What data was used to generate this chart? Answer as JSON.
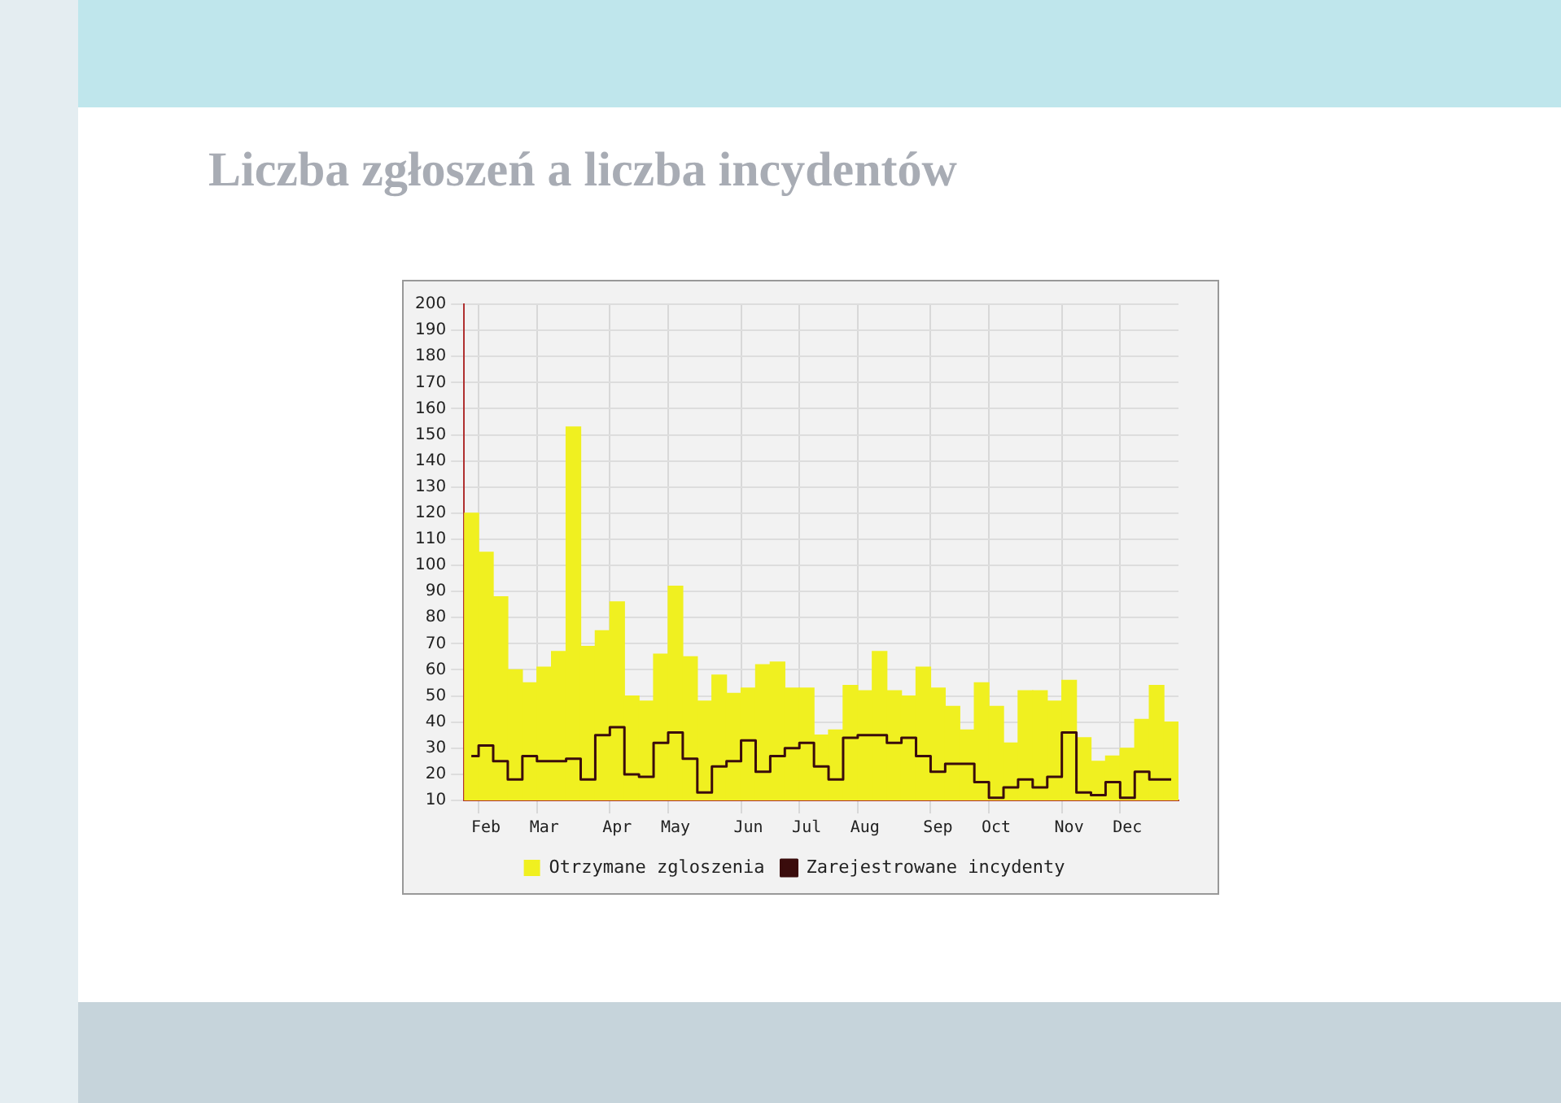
{
  "chart_data": {
    "type": "bar",
    "title": "Liczba zgłoszeń a liczba incydentów",
    "categories": [
      null,
      "Feb",
      null,
      null,
      null,
      "Mar",
      null,
      null,
      null,
      null,
      "Apr",
      null,
      null,
      null,
      "May",
      null,
      null,
      null,
      null,
      "Jun",
      null,
      null,
      null,
      "Jul",
      null,
      null,
      null,
      "Aug",
      null,
      null,
      null,
      null,
      "Sep",
      null,
      null,
      null,
      "Oct",
      null,
      null,
      null,
      null,
      "Nov",
      null,
      null,
      null,
      "Dec",
      null,
      null,
      null
    ],
    "series": [
      {
        "name": "Otrzymane zgloszenia",
        "color": "#f0f020",
        "values": [
          120,
          105,
          88,
          60,
          55,
          61,
          67,
          153,
          69,
          75,
          86,
          50,
          48,
          66,
          92,
          65,
          48,
          58,
          51,
          53,
          62,
          63,
          53,
          53,
          35,
          37,
          54,
          52,
          67,
          52,
          50,
          61,
          53,
          46,
          37,
          55,
          46,
          32,
          52,
          52,
          48,
          56,
          34,
          25,
          27,
          30,
          41,
          54,
          40
        ]
      },
      {
        "name": "Zarejestrowane incydenty",
        "type": "step",
        "color": "#3a0c0c",
        "values": [
          27,
          31,
          25,
          18,
          27,
          25,
          25,
          26,
          18,
          35,
          38,
          20,
          19,
          32,
          36,
          26,
          13,
          23,
          25,
          33,
          21,
          27,
          30,
          32,
          23,
          18,
          34,
          35,
          35,
          32,
          34,
          27,
          21,
          24,
          24,
          17,
          11,
          15,
          18,
          15,
          19,
          36,
          13,
          12,
          17,
          11,
          21,
          18,
          18
        ]
      }
    ],
    "ylim": [
      10,
      200
    ],
    "yticks": [
      10,
      20,
      30,
      40,
      50,
      60,
      70,
      80,
      90,
      100,
      110,
      120,
      130,
      140,
      150,
      160,
      170,
      180,
      190,
      200
    ],
    "grid": true,
    "legend": "bottom"
  }
}
